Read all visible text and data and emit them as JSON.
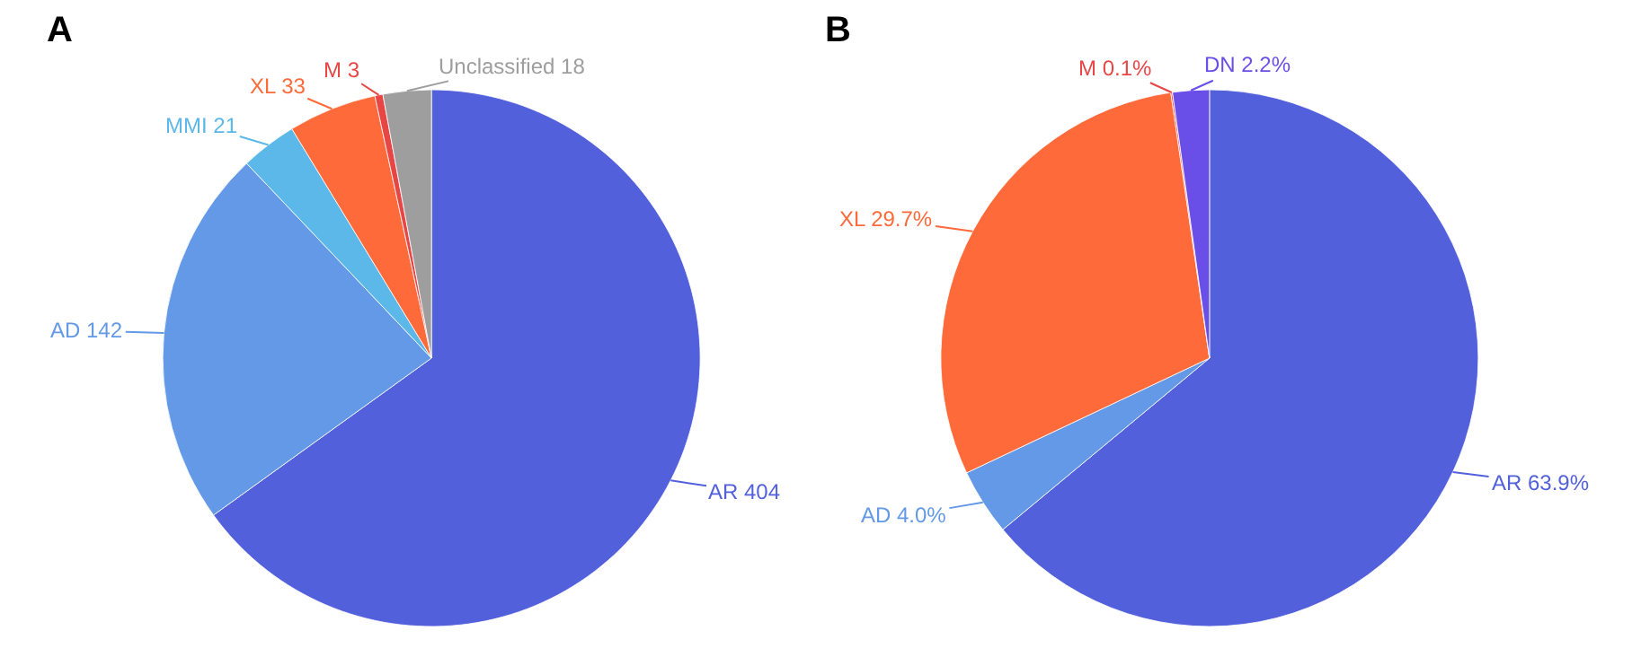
{
  "chart_data": [
    {
      "type": "pie",
      "title": "A",
      "categories": [
        "AR",
        "AD",
        "MMI",
        "XL",
        "M",
        "Unclassified"
      ],
      "values": [
        404,
        142,
        21,
        33,
        3,
        18
      ],
      "value_labels": [
        "404",
        "142",
        "21",
        "33",
        "3",
        "18"
      ],
      "colors": [
        "#5360dc",
        "#6399e6",
        "#5bb8e8",
        "#ff6a3a",
        "#e84545",
        "#9e9e9e"
      ],
      "legend": false
    },
    {
      "type": "pie",
      "title": "B",
      "categories": [
        "AR",
        "AD",
        "XL",
        "M",
        "DN"
      ],
      "values": [
        63.9,
        4.0,
        29.7,
        0.1,
        2.2
      ],
      "value_labels": [
        "63.9%",
        "4.0%",
        "29.7%",
        "0.1%",
        "2.2%"
      ],
      "colors": [
        "#5360dc",
        "#6399e6",
        "#ff6a3a",
        "#e84545",
        "#6a4ee8"
      ],
      "legend": false
    }
  ]
}
